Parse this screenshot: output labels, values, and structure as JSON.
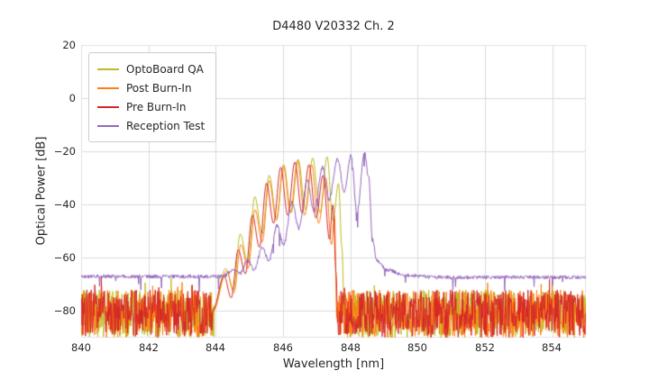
{
  "chart_data": {
    "type": "line",
    "title": "D4480 V20332 Ch. 2",
    "xlabel": "Wavelength [nm]",
    "ylabel": "Optical Power [dB]",
    "xlim": [
      840,
      855
    ],
    "ylim": [
      -90,
      20
    ],
    "xticks": [
      840,
      842,
      844,
      846,
      848,
      850,
      852,
      854
    ],
    "yticks": [
      20,
      0,
      -20,
      -40,
      -60,
      -80
    ],
    "xticklabels": [
      "840",
      "842",
      "844",
      "846",
      "848",
      "850",
      "852",
      "854"
    ],
    "yticklabels": [
      "20",
      "0",
      "−20",
      "−40",
      "−60",
      "−80"
    ],
    "grid": true,
    "grid_color": "#dcdcdc",
    "spine_color": "#e2e2e2",
    "background": "#ffffff",
    "legend_position": "upper left",
    "series": [
      {
        "name": "OptoBoard QA",
        "color": "#bcbd22",
        "noise_floor": [
          -90,
          -72
        ],
        "signal_points": [
          [
            843.95,
            -78
          ],
          [
            844.3,
            -64
          ],
          [
            844.52,
            -72
          ],
          [
            844.73,
            -51
          ],
          [
            844.95,
            -62
          ],
          [
            845.16,
            -37
          ],
          [
            845.38,
            -51
          ],
          [
            845.59,
            -29
          ],
          [
            845.81,
            -45
          ],
          [
            846.02,
            -25
          ],
          [
            846.24,
            -43
          ],
          [
            846.45,
            -23
          ],
          [
            846.67,
            -42
          ],
          [
            846.88,
            -22.5
          ],
          [
            847.1,
            -43
          ],
          [
            847.31,
            -22
          ],
          [
            847.48,
            -46
          ],
          [
            847.65,
            -32
          ],
          [
            847.75,
            -56
          ],
          [
            847.82,
            -80
          ]
        ]
      },
      {
        "name": "Post Burn-In",
        "color": "#ff7f0e",
        "noise_floor": [
          -90,
          -72
        ],
        "signal_points": [
          [
            843.92,
            -80
          ],
          [
            844.33,
            -65
          ],
          [
            844.54,
            -73
          ],
          [
            844.75,
            -55
          ],
          [
            844.96,
            -64
          ],
          [
            845.17,
            -42
          ],
          [
            845.38,
            -54
          ],
          [
            845.59,
            -31
          ],
          [
            845.8,
            -46
          ],
          [
            846.01,
            -25.5
          ],
          [
            846.22,
            -43
          ],
          [
            846.43,
            -23.5
          ],
          [
            846.64,
            -44
          ],
          [
            846.85,
            -25
          ],
          [
            847.06,
            -47
          ],
          [
            847.27,
            -30
          ],
          [
            847.44,
            -55
          ],
          [
            847.53,
            -44
          ],
          [
            847.6,
            -84
          ]
        ]
      },
      {
        "name": "Pre Burn-In",
        "color": "#d62728",
        "noise_floor": [
          -90,
          -72
        ],
        "signal_points": [
          [
            843.9,
            -80
          ],
          [
            844.25,
            -67
          ],
          [
            844.46,
            -75
          ],
          [
            844.67,
            -57
          ],
          [
            844.88,
            -66
          ],
          [
            845.09,
            -44
          ],
          [
            845.3,
            -56
          ],
          [
            845.51,
            -32
          ],
          [
            845.72,
            -47
          ],
          [
            845.93,
            -26
          ],
          [
            846.14,
            -44
          ],
          [
            846.35,
            -24
          ],
          [
            846.56,
            -43
          ],
          [
            846.77,
            -25
          ],
          [
            846.98,
            -45
          ],
          [
            847.19,
            -29
          ],
          [
            847.38,
            -53
          ],
          [
            847.48,
            -40
          ],
          [
            847.58,
            -66
          ],
          [
            847.62,
            -84
          ]
        ]
      },
      {
        "name": "Reception Test",
        "color": "#9467bd",
        "noise_amplitude_db": 0.7,
        "spike_chance": 0.015,
        "signal_points": [
          [
            840.0,
            -67
          ],
          [
            844.2,
            -67
          ],
          [
            844.55,
            -64.5
          ],
          [
            844.72,
            -66
          ],
          [
            844.95,
            -61
          ],
          [
            845.15,
            -64.5
          ],
          [
            845.38,
            -56
          ],
          [
            845.58,
            -61
          ],
          [
            845.82,
            -48
          ],
          [
            846.02,
            -55
          ],
          [
            846.27,
            -39
          ],
          [
            846.47,
            -49
          ],
          [
            846.72,
            -31
          ],
          [
            846.92,
            -43
          ],
          [
            847.17,
            -26
          ],
          [
            847.37,
            -38
          ],
          [
            847.62,
            -23
          ],
          [
            847.82,
            -35
          ],
          [
            848.02,
            -21.5
          ],
          [
            848.2,
            -43
          ],
          [
            848.42,
            -20.5
          ],
          [
            848.55,
            -30
          ],
          [
            848.65,
            -52
          ],
          [
            848.78,
            -61
          ],
          [
            849.1,
            -64.5
          ],
          [
            849.6,
            -66.5
          ],
          [
            850.5,
            -67.3
          ],
          [
            855.0,
            -67.3
          ]
        ]
      }
    ]
  }
}
